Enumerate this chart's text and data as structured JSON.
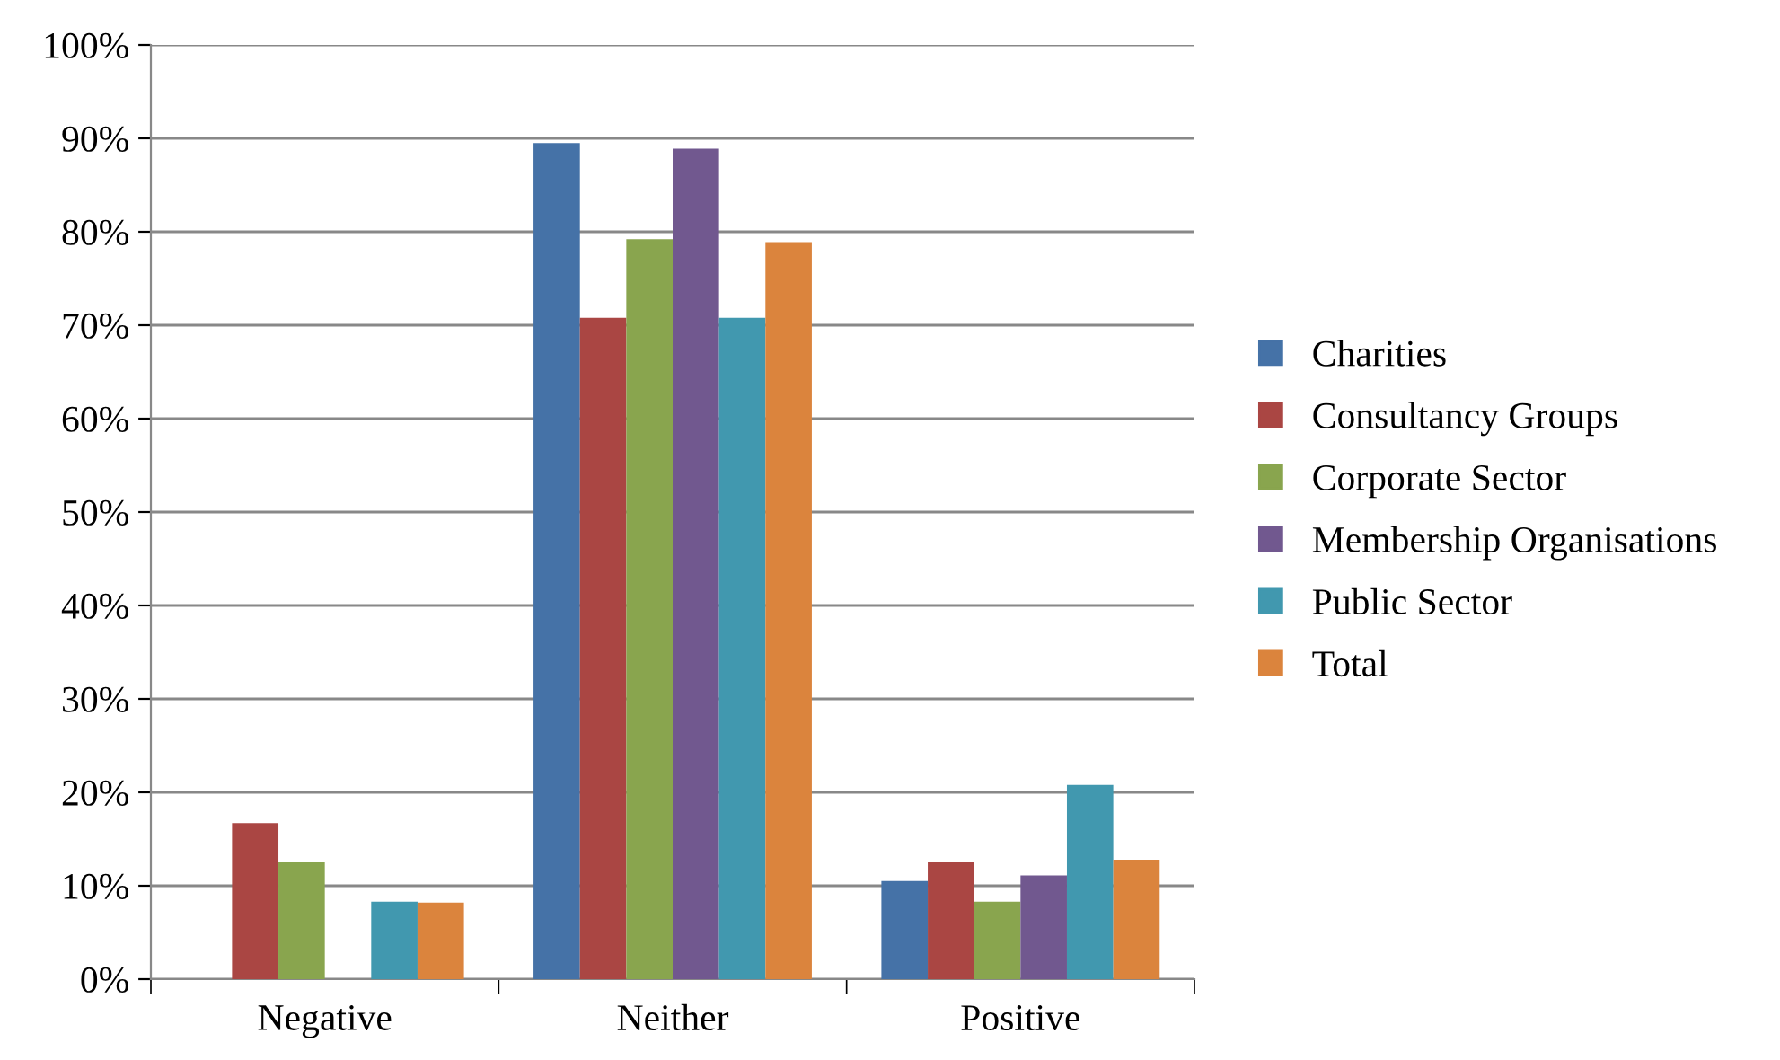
{
  "chart_data": {
    "type": "bar",
    "categories": [
      "Negative",
      "Neither",
      "Positive"
    ],
    "series": [
      {
        "name": "Charities",
        "color": "#4572a7",
        "values": [
          0,
          89.5,
          10.5
        ]
      },
      {
        "name": "Consultancy Groups",
        "color": "#aa4643",
        "values": [
          16.7,
          70.8,
          12.5
        ]
      },
      {
        "name": "Corporate Sector",
        "color": "#89a54e",
        "values": [
          12.5,
          79.2,
          8.3
        ]
      },
      {
        "name": "Membership Organisations",
        "color": "#71588f",
        "values": [
          0,
          88.9,
          11.1
        ]
      },
      {
        "name": "Public Sector",
        "color": "#4198af",
        "values": [
          8.3,
          70.8,
          20.8
        ]
      },
      {
        "name": "Total",
        "color": "#db843d",
        "values": [
          8.2,
          78.9,
          12.8
        ]
      }
    ],
    "ylim": [
      0,
      100
    ],
    "yticks": [
      {
        "value": 0,
        "label": "0%"
      },
      {
        "value": 10,
        "label": "10%"
      },
      {
        "value": 20,
        "label": "20%"
      },
      {
        "value": 30,
        "label": "30%"
      },
      {
        "value": 40,
        "label": "40%"
      },
      {
        "value": 50,
        "label": "50%"
      },
      {
        "value": 60,
        "label": "60%"
      },
      {
        "value": 70,
        "label": "70%"
      },
      {
        "value": 80,
        "label": "80%"
      },
      {
        "value": 90,
        "label": "90%"
      },
      {
        "value": 100,
        "label": "100%"
      }
    ],
    "grid": "y",
    "legend": "right"
  }
}
